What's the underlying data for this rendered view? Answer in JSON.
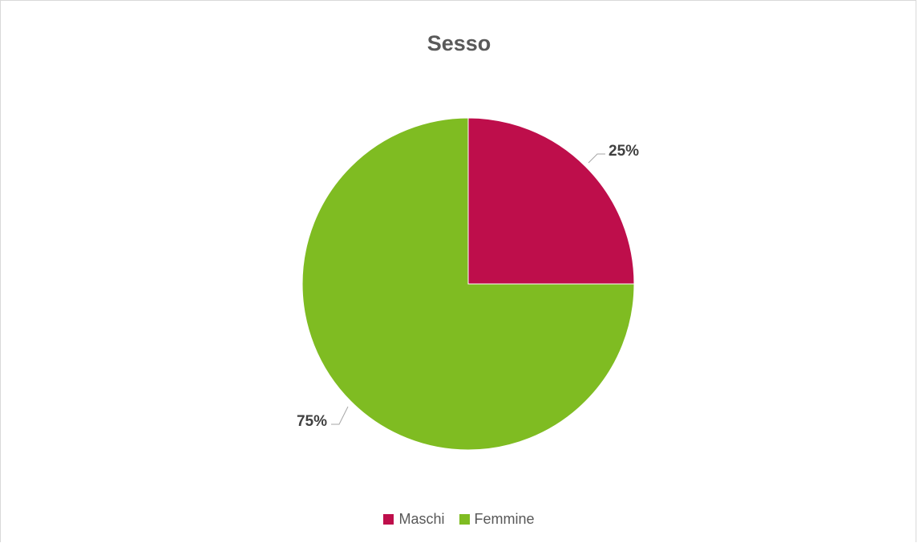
{
  "chart_data": {
    "type": "pie",
    "title": "Sesso",
    "categories": [
      "Maschi",
      "Femmine"
    ],
    "values": [
      25,
      75
    ],
    "data_labels": [
      "25%",
      "75%"
    ],
    "colors": [
      "#BE0E4B",
      "#7FBC22"
    ],
    "legend_position": "bottom",
    "start_angle": "12 o'clock, clockwise"
  }
}
